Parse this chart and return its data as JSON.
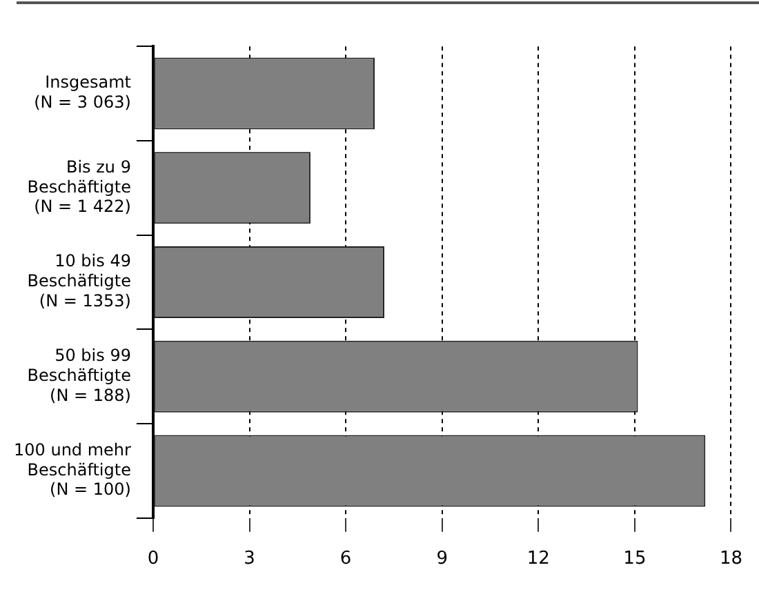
{
  "chart_data": {
    "type": "bar",
    "orientation": "horizontal",
    "categories": [
      "Insgesamt\n(N = 3 063)",
      "Bis zu 9\nBeschäftigte\n(N = 1 422)",
      "10 bis 49\nBeschäftigte\n(N = 1353)",
      "50 bis 99\nBeschäftigte\n(N = 188)",
      "100 und mehr\nBeschäftigte\n(N = 100)"
    ],
    "values": [
      6.9,
      4.9,
      7.2,
      15.1,
      17.2
    ],
    "color": "#808080",
    "xlim": [
      0,
      18
    ],
    "xticks": [
      0,
      3,
      6,
      9,
      12,
      15,
      18
    ],
    "grid": "x",
    "legend": false
  }
}
